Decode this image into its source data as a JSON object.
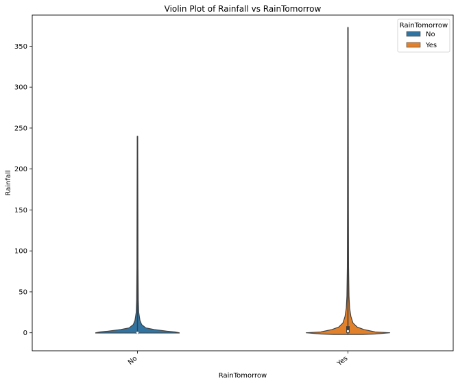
{
  "chart_data": {
    "type": "violin",
    "title": "Violin Plot of Rainfall vs RainTomorrow",
    "xlabel": "RainTomorrow",
    "ylabel": "Rainfall",
    "categories": [
      "No",
      "Yes"
    ],
    "ylim": [
      -22,
      388
    ],
    "yticks": [
      0,
      50,
      100,
      150,
      200,
      250,
      300,
      350
    ],
    "grid": false,
    "legend": {
      "title": "RainTomorrow",
      "placement": "top-right",
      "entries": [
        {
          "name": "No",
          "color": "#3274a1"
        },
        {
          "name": "Yes",
          "color": "#e1812c"
        }
      ]
    },
    "series": [
      {
        "name": "No",
        "category": "No",
        "color": "#3274a1",
        "min": -0.3,
        "max": 240,
        "median": 0,
        "q1": 0,
        "q3": 0,
        "density_profile": [
          [
            240,
            0.005
          ],
          [
            150,
            0.01
          ],
          [
            80,
            0.013
          ],
          [
            40,
            0.02
          ],
          [
            25,
            0.03
          ],
          [
            15,
            0.06
          ],
          [
            10,
            0.1
          ],
          [
            6,
            0.2
          ],
          [
            4,
            0.4
          ],
          [
            2,
            0.7
          ],
          [
            1,
            0.9
          ],
          [
            0,
            1.0
          ],
          [
            -0.3,
            1.0
          ]
        ]
      },
      {
        "name": "Yes",
        "category": "Yes",
        "color": "#e1812c",
        "min": -2,
        "max": 373,
        "median": 2,
        "q1": 0,
        "q3": 8,
        "density_profile": [
          [
            373,
            0.005
          ],
          [
            250,
            0.008
          ],
          [
            150,
            0.011
          ],
          [
            80,
            0.015
          ],
          [
            45,
            0.025
          ],
          [
            30,
            0.04
          ],
          [
            20,
            0.07
          ],
          [
            12,
            0.12
          ],
          [
            7,
            0.22
          ],
          [
            4,
            0.38
          ],
          [
            1,
            0.65
          ],
          [
            0,
            1.0
          ],
          [
            -1.5,
            0.65
          ],
          [
            -2,
            0.35
          ]
        ]
      }
    ]
  }
}
